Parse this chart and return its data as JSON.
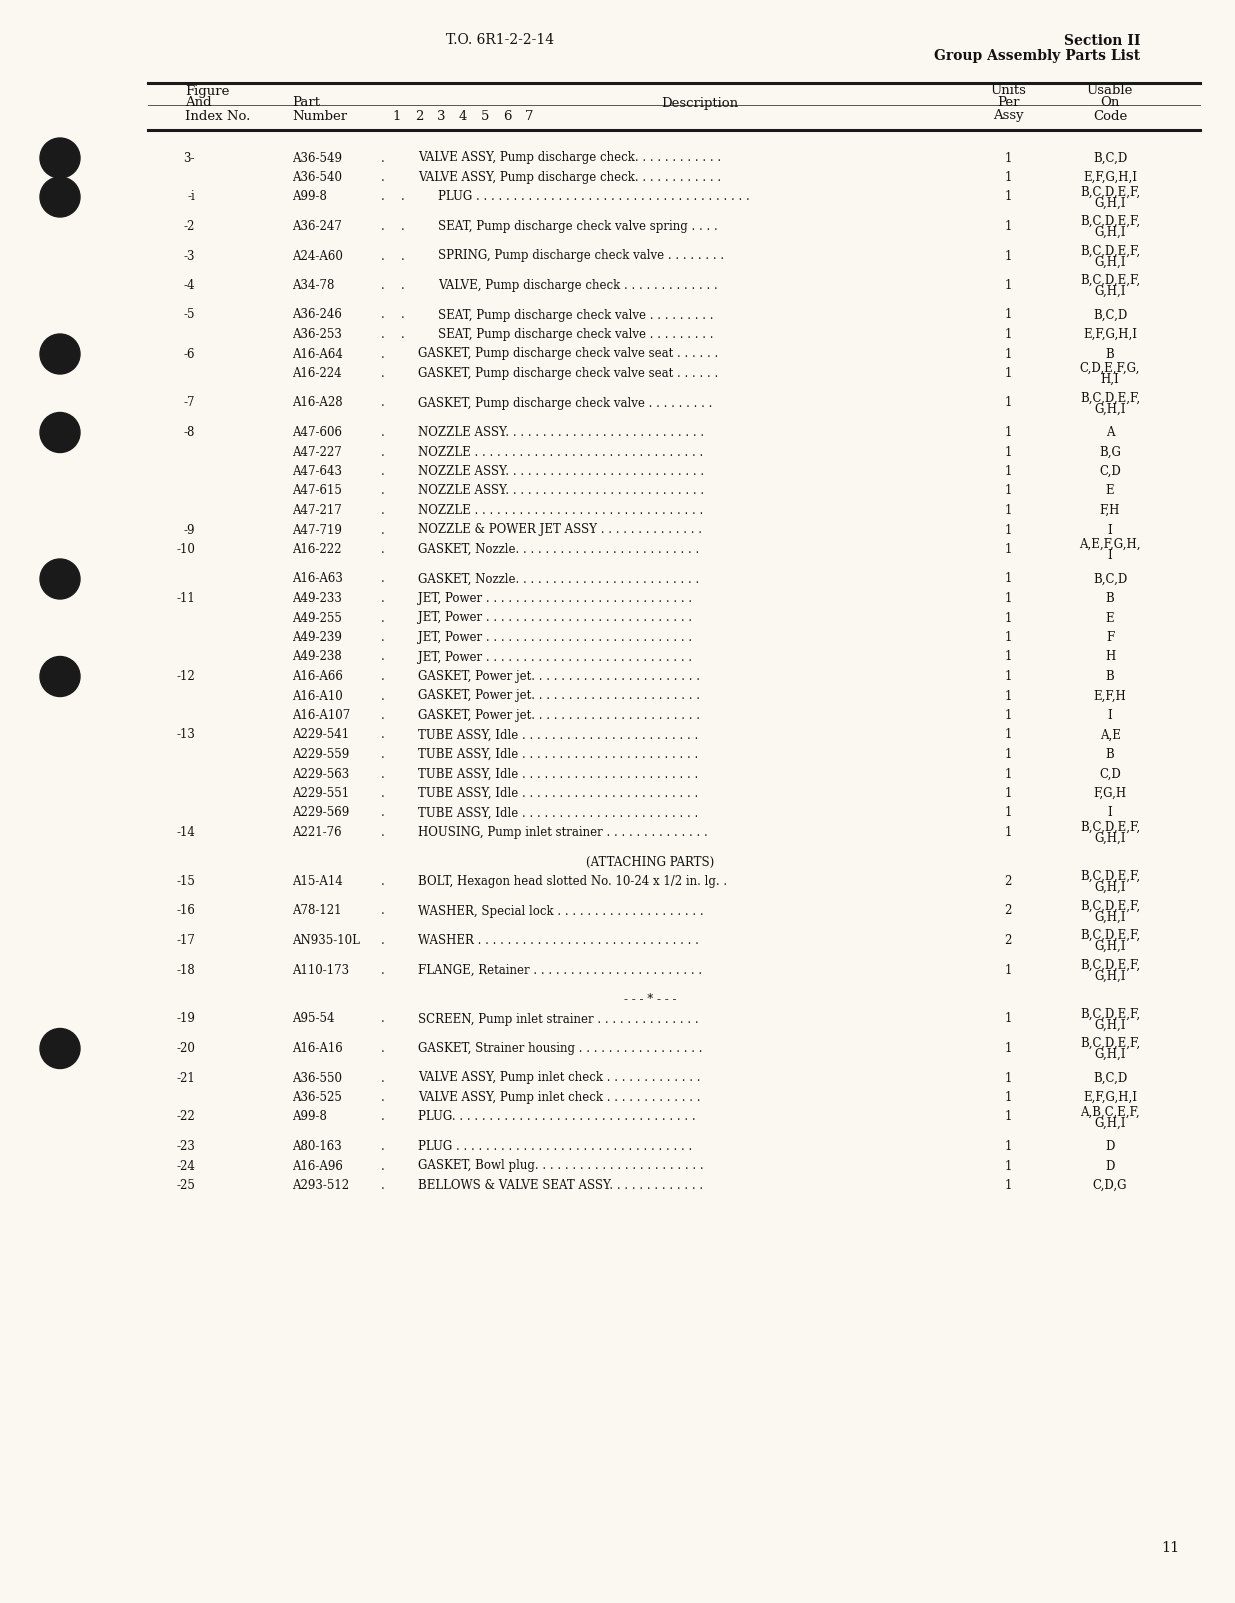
{
  "page_bg": "#faf8f0",
  "header_left": "T.O. 6R1-2-2-14",
  "header_right_line1": "Section II",
  "header_right_line2": "Group Assembly Parts List",
  "page_number": "11",
  "rows": [
    {
      "fig": "3-",
      "part": "A36-549",
      "indent": 1,
      "desc": "VALVE ASSY, Pump discharge check. . . . . . . . . . . .",
      "qty": "1",
      "code": "B,C,D",
      "code2": ""
    },
    {
      "fig": "",
      "part": "A36-540",
      "indent": 1,
      "desc": "VALVE ASSY, Pump discharge check. . . . . . . . . . . .",
      "qty": "1",
      "code": "E,F,G,H,I",
      "code2": ""
    },
    {
      "fig": "-i",
      "part": "A99-8",
      "indent": 2,
      "desc": "PLUG . . . . . . . . . . . . . . . . . . . . . . . . . . . . . . . . . . . . .",
      "qty": "1",
      "code": "B,C,D,E,F,",
      "code2": "G,H,I"
    },
    {
      "fig": "-2",
      "part": "A36-247",
      "indent": 2,
      "desc": "SEAT, Pump discharge check valve spring . . . .",
      "qty": "1",
      "code": "B,C,D,E,F,",
      "code2": "G,H,I"
    },
    {
      "fig": "-3",
      "part": "A24-A60",
      "indent": 2,
      "desc": "SPRING, Pump discharge check valve . . . . . . . .",
      "qty": "1",
      "code": "B,C,D,E,F,",
      "code2": "G,H,I"
    },
    {
      "fig": "-4",
      "part": "A34-78",
      "indent": 2,
      "desc": "VALVE, Pump discharge check . . . . . . . . . . . . .",
      "qty": "1",
      "code": "B,C,D,E,F,",
      "code2": "G,H,I"
    },
    {
      "fig": "-5",
      "part": "A36-246",
      "indent": 2,
      "desc": "SEAT, Pump discharge check valve . . . . . . . . .",
      "qty": "1",
      "code": "B,C,D",
      "code2": ""
    },
    {
      "fig": "",
      "part": "A36-253",
      "indent": 2,
      "desc": "SEAT, Pump discharge check valve . . . . . . . . .",
      "qty": "1",
      "code": "E,F,G,H,I",
      "code2": ""
    },
    {
      "fig": "-6",
      "part": "A16-A64",
      "indent": 1,
      "desc": "GASKET, Pump discharge check valve seat . . . . . .",
      "qty": "1",
      "code": "B",
      "code2": ""
    },
    {
      "fig": "",
      "part": "A16-224",
      "indent": 1,
      "desc": "GASKET, Pump discharge check valve seat . . . . . .",
      "qty": "1",
      "code": "C,D,E,F,G,",
      "code2": "H,I"
    },
    {
      "fig": "-7",
      "part": "A16-A28",
      "indent": 1,
      "desc": "GASKET, Pump discharge check valve . . . . . . . . .",
      "qty": "1",
      "code": "B,C,D,E,F,",
      "code2": "G,H,I"
    },
    {
      "fig": "-8",
      "part": "A47-606",
      "indent": 1,
      "desc": "NOZZLE ASSY. . . . . . . . . . . . . . . . . . . . . . . . . . .",
      "qty": "1",
      "code": "A",
      "code2": ""
    },
    {
      "fig": "",
      "part": "A47-227",
      "indent": 1,
      "desc": "NOZZLE . . . . . . . . . . . . . . . . . . . . . . . . . . . . . . .",
      "qty": "1",
      "code": "B,G",
      "code2": ""
    },
    {
      "fig": "",
      "part": "A47-643",
      "indent": 1,
      "desc": "NOZZLE ASSY. . . . . . . . . . . . . . . . . . . . . . . . . . .",
      "qty": "1",
      "code": "C,D",
      "code2": ""
    },
    {
      "fig": "",
      "part": "A47-615",
      "indent": 1,
      "desc": "NOZZLE ASSY. . . . . . . . . . . . . . . . . . . . . . . . . . .",
      "qty": "1",
      "code": "E",
      "code2": ""
    },
    {
      "fig": "",
      "part": "A47-217",
      "indent": 1,
      "desc": "NOZZLE . . . . . . . . . . . . . . . . . . . . . . . . . . . . . . .",
      "qty": "1",
      "code": "F,H",
      "code2": ""
    },
    {
      "fig": "-9",
      "part": "A47-719",
      "indent": 1,
      "desc": "NOZZLE & POWER JET ASSY . . . . . . . . . . . . . .",
      "qty": "1",
      "code": "I",
      "code2": ""
    },
    {
      "fig": "-10",
      "part": "A16-222",
      "indent": 1,
      "desc": "GASKET, Nozzle. . . . . . . . . . . . . . . . . . . . . . . . .",
      "qty": "1",
      "code": "A,E,F,G,H,",
      "code2": "I"
    },
    {
      "fig": "",
      "part": "A16-A63",
      "indent": 1,
      "desc": "GASKET, Nozzle. . . . . . . . . . . . . . . . . . . . . . . . .",
      "qty": "1",
      "code": "B,C,D",
      "code2": ""
    },
    {
      "fig": "-11",
      "part": "A49-233",
      "indent": 1,
      "desc": "JET, Power . . . . . . . . . . . . . . . . . . . . . . . . . . . .",
      "qty": "1",
      "code": "B",
      "code2": ""
    },
    {
      "fig": "",
      "part": "A49-255",
      "indent": 1,
      "desc": "JET, Power . . . . . . . . . . . . . . . . . . . . . . . . . . . .",
      "qty": "1",
      "code": "E",
      "code2": ""
    },
    {
      "fig": "",
      "part": "A49-239",
      "indent": 1,
      "desc": "JET, Power . . . . . . . . . . . . . . . . . . . . . . . . . . . .",
      "qty": "1",
      "code": "F",
      "code2": ""
    },
    {
      "fig": "",
      "part": "A49-238",
      "indent": 1,
      "desc": "JET, Power . . . . . . . . . . . . . . . . . . . . . . . . . . . .",
      "qty": "1",
      "code": "H",
      "code2": ""
    },
    {
      "fig": "-12",
      "part": "A16-A66",
      "indent": 1,
      "desc": "GASKET, Power jet. . . . . . . . . . . . . . . . . . . . . . .",
      "qty": "1",
      "code": "B",
      "code2": ""
    },
    {
      "fig": "",
      "part": "A16-A10",
      "indent": 1,
      "desc": "GASKET, Power jet. . . . . . . . . . . . . . . . . . . . . . .",
      "qty": "1",
      "code": "E,F,H",
      "code2": ""
    },
    {
      "fig": "",
      "part": "A16-A107",
      "indent": 1,
      "desc": "GASKET, Power jet. . . . . . . . . . . . . . . . . . . . . . .",
      "qty": "1",
      "code": "I",
      "code2": ""
    },
    {
      "fig": "-13",
      "part": "A229-541",
      "indent": 1,
      "desc": "TUBE ASSY, Idle . . . . . . . . . . . . . . . . . . . . . . . .",
      "qty": "1",
      "code": "A,E",
      "code2": ""
    },
    {
      "fig": "",
      "part": "A229-559",
      "indent": 1,
      "desc": "TUBE ASSY, Idle . . . . . . . . . . . . . . . . . . . . . . . .",
      "qty": "1",
      "code": "B",
      "code2": ""
    },
    {
      "fig": "",
      "part": "A229-563",
      "indent": 1,
      "desc": "TUBE ASSY, Idle . . . . . . . . . . . . . . . . . . . . . . . .",
      "qty": "1",
      "code": "C,D",
      "code2": ""
    },
    {
      "fig": "",
      "part": "A229-551",
      "indent": 1,
      "desc": "TUBE ASSY, Idle . . . . . . . . . . . . . . . . . . . . . . . .",
      "qty": "1",
      "code": "F,G,H",
      "code2": ""
    },
    {
      "fig": "",
      "part": "A229-569",
      "indent": 1,
      "desc": "TUBE ASSY, Idle . . . . . . . . . . . . . . . . . . . . . . . .",
      "qty": "1",
      "code": "I",
      "code2": ""
    },
    {
      "fig": "-14",
      "part": "A221-76",
      "indent": 1,
      "desc": "HOUSING, Pump inlet strainer . . . . . . . . . . . . . .",
      "qty": "1",
      "code": "B,C,D,E,F,",
      "code2": "G,H,I"
    },
    {
      "fig": "",
      "part": "",
      "indent": 0,
      "desc": "(ATTACHING PARTS)",
      "qty": "",
      "code": "",
      "code2": ""
    },
    {
      "fig": "-15",
      "part": "A15-A14",
      "indent": 1,
      "desc": "BOLT, Hexagon head slotted No. 10-24 x 1/2 in. lg. .",
      "qty": "2",
      "code": "B,C,D,E,F,",
      "code2": "G,H,I"
    },
    {
      "fig": "-16",
      "part": "A78-121",
      "indent": 1,
      "desc": "WASHER, Special lock . . . . . . . . . . . . . . . . . . . .",
      "qty": "2",
      "code": "B,C,D,E,F,",
      "code2": "G,H,I"
    },
    {
      "fig": "-17",
      "part": "AN935-10L",
      "indent": 1,
      "desc": "WASHER . . . . . . . . . . . . . . . . . . . . . . . . . . . . . .",
      "qty": "2",
      "code": "B,C,D,E,F,",
      "code2": "G,H,I"
    },
    {
      "fig": "-18",
      "part": "A110-173",
      "indent": 1,
      "desc": "FLANGE, Retainer . . . . . . . . . . . . . . . . . . . . . . .",
      "qty": "1",
      "code": "B,C,D,E,F,",
      "code2": "G,H,I"
    },
    {
      "fig": "",
      "part": "",
      "indent": 0,
      "desc": "- - - * - - -",
      "qty": "",
      "code": "",
      "code2": ""
    },
    {
      "fig": "-19",
      "part": "A95-54",
      "indent": 1,
      "desc": "SCREEN, Pump inlet strainer . . . . . . . . . . . . . .",
      "qty": "1",
      "code": "B,C,D,E,F,",
      "code2": "G,H,I"
    },
    {
      "fig": "-20",
      "part": "A16-A16",
      "indent": 1,
      "desc": "GASKET, Strainer housing . . . . . . . . . . . . . . . . .",
      "qty": "1",
      "code": "B,C,D,E,F,",
      "code2": "G,H,I"
    },
    {
      "fig": "-21",
      "part": "A36-550",
      "indent": 1,
      "desc": "VALVE ASSY, Pump inlet check . . . . . . . . . . . . .",
      "qty": "1",
      "code": "B,C,D",
      "code2": ""
    },
    {
      "fig": "",
      "part": "A36-525",
      "indent": 1,
      "desc": "VALVE ASSY, Pump inlet check . . . . . . . . . . . . .",
      "qty": "1",
      "code": "E,F,G,H,I",
      "code2": ""
    },
    {
      "fig": "-22",
      "part": "A99-8",
      "indent": 1,
      "desc": "PLUG. . . . . . . . . . . . . . . . . . . . . . . . . . . . . . . . .",
      "qty": "1",
      "code": "A,B,C,E,F,",
      "code2": "G,H,I"
    },
    {
      "fig": "-23",
      "part": "A80-163",
      "indent": 1,
      "desc": "PLUG . . . . . . . . . . . . . . . . . . . . . . . . . . . . . . . .",
      "qty": "1",
      "code": "D",
      "code2": ""
    },
    {
      "fig": "-24",
      "part": "A16-A96",
      "indent": 1,
      "desc": "GASKET, Bowl plug. . . . . . . . . . . . . . . . . . . . . . .",
      "qty": "1",
      "code": "D",
      "code2": ""
    },
    {
      "fig": "-25",
      "part": "A293-512",
      "indent": 1,
      "desc": "BELLOWS & VALVE SEAT ASSY. . . . . . . . . . . . .",
      "qty": "1",
      "code": "C,D,G",
      "code2": ""
    }
  ]
}
